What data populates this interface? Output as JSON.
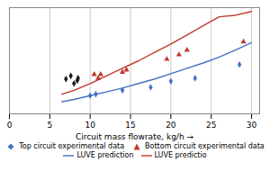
{
  "chart_data": {
    "type": "scatter",
    "xlabel": "Circuit mass flowrate, kg/h",
    "xlim": [
      0,
      31
    ],
    "ylim": [
      0,
      140
    ],
    "xticks": [
      0,
      5,
      10,
      15,
      20,
      25,
      30
    ],
    "yticks": [],
    "tick_labels": "x",
    "grid": true,
    "series": [
      {
        "name": "Top circuit experimental data",
        "type": "scatter",
        "marker": "diamond",
        "color": "#4472c4",
        "x": [
          10.0,
          10.7,
          14.0,
          17.5,
          20.0,
          23.0,
          28.5
        ],
        "values": [
          24,
          26,
          31,
          35,
          43,
          47,
          65
        ]
      },
      {
        "name": "Bottom circuit experimental data",
        "type": "scatter",
        "marker": "triangle",
        "color": "#c0392b",
        "x": [
          10.5,
          11.0,
          11.3,
          14.0,
          14.5,
          19.5,
          21.0,
          22.0,
          29.0
        ],
        "values": [
          52,
          47,
          52,
          55,
          58,
          72,
          78,
          84,
          95
        ]
      },
      {
        "name": "LUVE prediction",
        "type": "line",
        "line_style": "solid",
        "color": "#4472c4",
        "x": [
          6.5,
          8.0,
          10.0,
          12.0,
          14.0,
          16.0,
          18.0,
          20.0,
          22.0,
          24.0,
          26.0,
          28.0,
          30.0
        ],
        "values": [
          16,
          19,
          24,
          29,
          34,
          40,
          46,
          53,
          60,
          67,
          75,
          84,
          94
        ]
      },
      {
        "name": "LUVE predictio",
        "type": "line",
        "line_style": "solid",
        "color": "#c0392b",
        "x": [
          6.5,
          8.0,
          10.0,
          12.0,
          14.0,
          16.0,
          18.0,
          20.0,
          22.0,
          24.0,
          26.0,
          28.0,
          30.0
        ],
        "values": [
          26,
          31,
          40,
          50,
          60,
          70,
          81,
          92,
          104,
          116,
          128,
          130,
          135
        ]
      },
      {
        "type": "scatter",
        "marker": "diamond",
        "color": "#1a1a1a",
        "x": [
          7.0,
          7.6,
          8.0,
          8.4,
          8.5
        ],
        "values": [
          46,
          50,
          40,
          44,
          47
        ]
      }
    ]
  }
}
